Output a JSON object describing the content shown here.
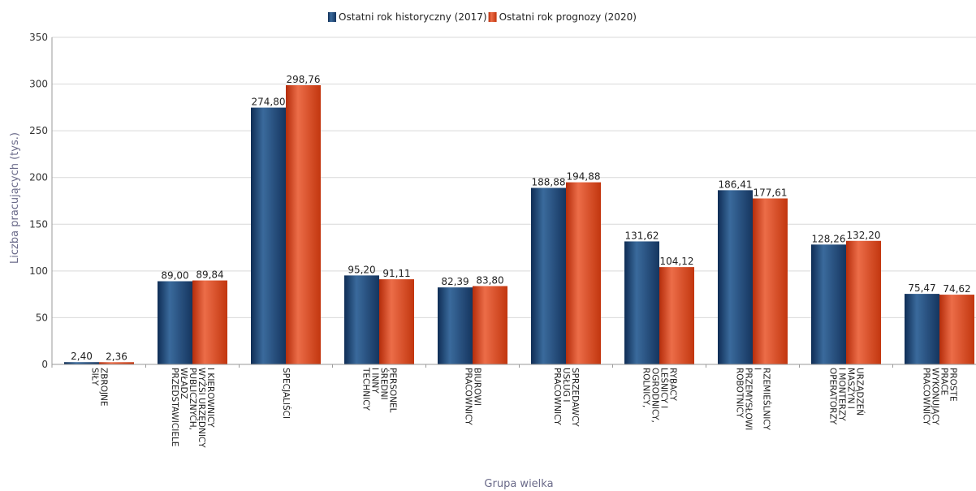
{
  "chart_data": {
    "type": "bar",
    "legend_position": "top-center",
    "grid": true,
    "ylabel": "Liczba pracujących (tys.)",
    "xlabel": "Grupa wielka",
    "ylim": [
      0,
      350
    ],
    "y_ticks": [
      "0",
      "50",
      "100",
      "150",
      "200",
      "250",
      "300",
      "350"
    ],
    "categories": [
      [
        "SIŁY",
        "ZBROJNE"
      ],
      [
        "PRZEDSTAWICIELE",
        "WŁADZ",
        "PUBLICZNYCH,",
        "WYŻSI URZĘDNICY",
        "I KIEROWNICY"
      ],
      [
        "SPECJALIŚCI"
      ],
      [
        "TECHNICY",
        "I INNY",
        "ŚREDNI",
        "PERSONEL"
      ],
      [
        "PRACOWNICY",
        "BIUROWI"
      ],
      [
        "PRACOWNICY",
        "USŁUG I",
        "SPRZEDAWCY"
      ],
      [
        "ROLNICY,",
        "OGRODNICY,",
        "LEŚNICY I",
        "RYBACY"
      ],
      [
        "ROBOTNICY",
        "PRZEMYSŁOWI",
        "I",
        "RZEMIEŚLNICY"
      ],
      [
        "OPERATORZY",
        "I MONTERZY",
        "MASZYN I",
        "URZĄDZEŃ"
      ],
      [
        "PRACOWNICY",
        "WYKONUJĄCY",
        "PRACE",
        "PROSTE"
      ]
    ],
    "series": [
      {
        "name": "Ostatni rok historyczny (2017)",
        "color": "#1f4e7d",
        "values": [
          2.4,
          89.0,
          274.8,
          95.2,
          82.39,
          188.88,
          131.62,
          186.41,
          128.26,
          75.47
        ],
        "labels": [
          "2,40",
          "89,00",
          "274,80",
          "95,20",
          "82,39",
          "188,88",
          "131,62",
          "186,41",
          "128,26",
          "75,47"
        ]
      },
      {
        "name": "Ostatni rok prognozy (2020)",
        "color": "#d2401c",
        "values": [
          2.36,
          89.84,
          298.76,
          91.11,
          83.8,
          194.88,
          104.12,
          177.61,
          132.2,
          74.62
        ],
        "labels": [
          "2,36",
          "89,84",
          "298,76",
          "91,11",
          "83,80",
          "194,88",
          "104,12",
          "177,61",
          "132,20",
          "74,62"
        ]
      }
    ]
  }
}
